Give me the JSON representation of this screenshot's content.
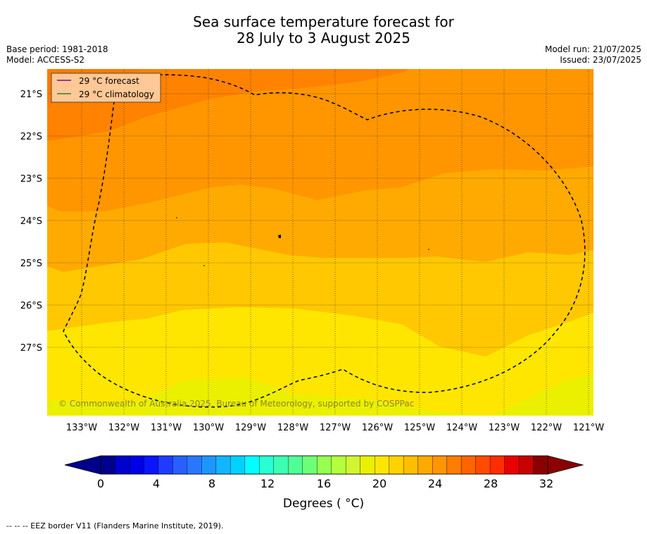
{
  "title": {
    "line1": "Sea surface temperature forecast for",
    "line2": "28 July to 3 August 2025"
  },
  "meta": {
    "base_period": "Base period: 1981-2018",
    "model": "Model: ACCESS-S2",
    "model_run": "Model run: 21/07/2025",
    "issued": "Issued: 23/07/2025"
  },
  "legend": {
    "forecast": "29 °C  forecast",
    "climatology": "29 °C  climatology",
    "forecast_color": "#8b008b",
    "climatology_color": "#228b22"
  },
  "lat_ticks": [
    "21°S",
    "22°S",
    "23°S",
    "24°S",
    "25°S",
    "26°S",
    "27°S"
  ],
  "lon_ticks": [
    "133°W",
    "132°W",
    "131°W",
    "130°W",
    "129°W",
    "128°W",
    "127°W",
    "126°W",
    "125°W",
    "124°W",
    "123°W",
    "122°W",
    "121°W"
  ],
  "copyright": "© Commonwealth of Australia 2025, Bureau of Meteorology, supported by COSPPac",
  "colorbar": {
    "labels": [
      "0",
      "4",
      "8",
      "12",
      "16",
      "20",
      "24",
      "28",
      "32"
    ],
    "title": "Degrees ( °C)",
    "colors": [
      "#00008b",
      "#0000cd",
      "#0000e6",
      "#0a14ff",
      "#1e3cff",
      "#2860ff",
      "#2878ff",
      "#1e96ff",
      "#14b4ff",
      "#00d2ff",
      "#00ffff",
      "#28ffd2",
      "#3cffb4",
      "#50ff96",
      "#6eff78",
      "#96ff50",
      "#b4ff3c",
      "#d2f532",
      "#ebf000",
      "#ffe600",
      "#ffd200",
      "#ffbe00",
      "#ffaa00",
      "#ff9600",
      "#ff7d00",
      "#ff6400",
      "#ff4b00",
      "#ff2d00",
      "#eb0000",
      "#c80000",
      "#8b0000"
    ],
    "under_color": "#00008b",
    "over_color": "#8b0000"
  },
  "footer": "--  --  -- EEZ border V11 (Flanders Marine Institute, 2019)."
}
